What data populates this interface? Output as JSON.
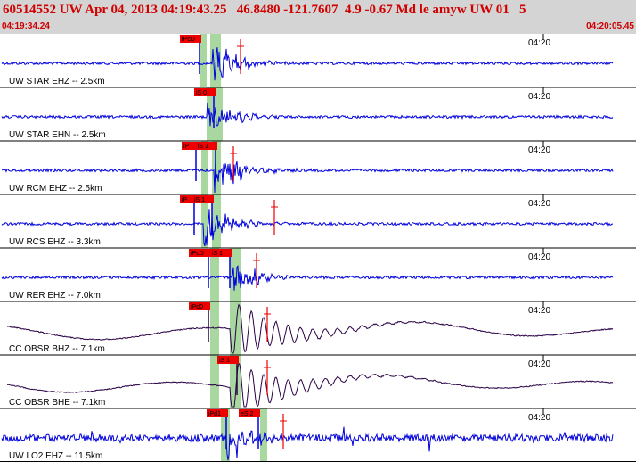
{
  "header": {
    "title": "60514552 UW Apr 04, 2013 04:19:43.25   46.8480 -121.7607  4.9 -0.67 Md le amyw UW 01   5",
    "start_time": "04:19:34.24",
    "end_time": "04:20:05.45"
  },
  "colors": {
    "header_bg": "#d4d4d4",
    "header_text": "#d00000",
    "trace_blue": "#0000dd",
    "trace_dark": "#2a0045",
    "pick_box": "#ee0000",
    "shade": "#a8d8a0",
    "divider": "#000000"
  },
  "traces": [
    {
      "label": "UW STAR EHZ -- 2.5km",
      "time_tick": "04:20",
      "picks": [
        "iPcD"
      ],
      "style": "blue",
      "amp": 1.0
    },
    {
      "label": "UW STAR EHN -- 2.5km",
      "time_tick": "04:20",
      "picks": [
        "iS 0"
      ],
      "style": "blue",
      "amp": 0.9
    },
    {
      "label": "UW RCM EHZ -- 2.5km",
      "time_tick": "04:20",
      "picks": [
        "iP",
        "iS 1"
      ],
      "style": "blue",
      "amp": 1.1
    },
    {
      "label": "UW RCS EHZ -- 3.3km",
      "time_tick": "04:20",
      "picks": [
        "iP",
        "iS 1"
      ],
      "style": "blue",
      "amp": 1.0
    },
    {
      "label": "UW RER EHZ -- 7.0km",
      "time_tick": "04:20",
      "picks": [
        "iPcD",
        "iS 1"
      ],
      "style": "blue",
      "amp": 0.9
    },
    {
      "label": "CC OBSR BHZ -- 7.1km",
      "time_tick": "04:20",
      "picks": [
        "iPd0"
      ],
      "style": "dark",
      "amp": 1.3
    },
    {
      "label": "CC OBSR BHE -- 7.1km",
      "time_tick": "04:20",
      "picks": [
        "iS 1"
      ],
      "style": "dark",
      "amp": 1.3
    },
    {
      "label": "UW LO2 EHZ -- 11.5km",
      "time_tick": "04:20",
      "picks": [
        "iPd1",
        "eS 2"
      ],
      "style": "blue",
      "amp": 1.0
    }
  ]
}
